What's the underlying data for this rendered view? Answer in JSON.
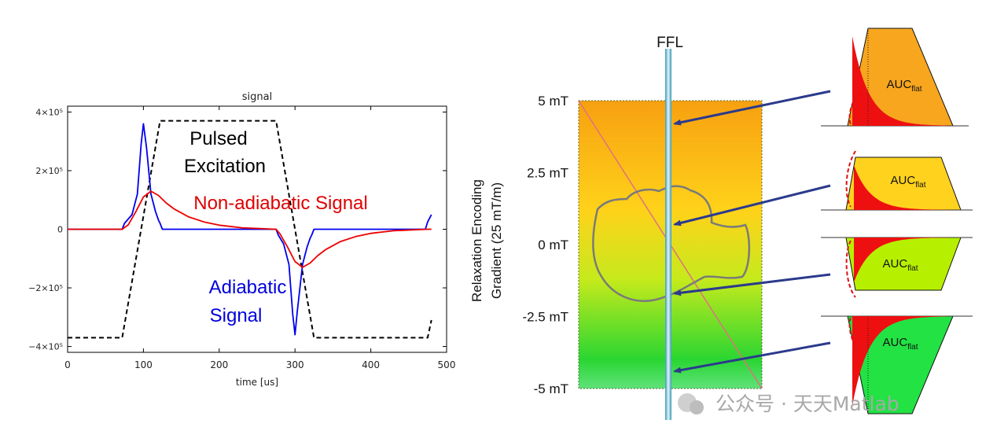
{
  "watermark": "公众号 · 天天Matlab",
  "chart_data": [
    {
      "type": "line",
      "title": "signal",
      "xlabel": "time [us]",
      "ylabel": "",
      "xlim": [
        0,
        500
      ],
      "ylim": [
        -420000,
        420000
      ],
      "x_ticks": [
        "0",
        "100",
        "200",
        "300",
        "400",
        "500"
      ],
      "y_ticks": [
        {
          "value": 400000,
          "label": "4×10⁵"
        },
        {
          "value": 200000,
          "label": "2×10⁵"
        },
        {
          "value": 0,
          "label": "0"
        },
        {
          "value": -200000,
          "label": "−2×10⁵"
        },
        {
          "value": -400000,
          "label": "−4×10⁵"
        }
      ],
      "grid": false,
      "annotations": [
        {
          "text": "Pulsed",
          "series": "pulsed"
        },
        {
          "text": "Excitation",
          "series": "pulsed"
        },
        {
          "text": "Non-adiabatic Signal",
          "series": "nonadiabatic"
        },
        {
          "text": "Adiabatic",
          "series": "adiabatic"
        },
        {
          "text": "Signal",
          "series": "adiabatic"
        }
      ],
      "series": [
        {
          "id": "pulsed",
          "color": "#000000",
          "dashed": true,
          "x": [
            0,
            72,
            122,
            275,
            325,
            475,
            480
          ],
          "y": [
            -370000,
            -370000,
            370000,
            370000,
            -370000,
            -370000,
            -310000
          ]
        },
        {
          "id": "adiabatic",
          "color": "#0000ee",
          "x": [
            0,
            72,
            75,
            85,
            92,
            97,
            100,
            104,
            110,
            116,
            120,
            122,
            125,
            200,
            270,
            275,
            278,
            285,
            292,
            297,
            300,
            303,
            310,
            316,
            320,
            322,
            325,
            400,
            472,
            475,
            480
          ],
          "y": [
            0,
            0,
            20000,
            50000,
            120000,
            290000,
            360000,
            280000,
            120000,
            60000,
            30000,
            20000,
            0,
            0,
            0,
            0,
            -20000,
            -50000,
            -120000,
            -290000,
            -360000,
            -280000,
            -120000,
            -60000,
            -30000,
            -20000,
            0,
            0,
            0,
            25000,
            50000
          ]
        },
        {
          "id": "nonadiabatic",
          "color": "#ee0000",
          "x": [
            0,
            72,
            80,
            90,
            100,
            110,
            120,
            130,
            140,
            160,
            180,
            200,
            230,
            260,
            275,
            280,
            290,
            300,
            310,
            320,
            330,
            340,
            360,
            380,
            400,
            430,
            460,
            475,
            480
          ],
          "y": [
            0,
            0,
            15000,
            60000,
            110000,
            130000,
            115000,
            90000,
            70000,
            42000,
            25000,
            14000,
            5000,
            1500,
            0,
            -15000,
            -60000,
            -110000,
            -130000,
            -115000,
            -90000,
            -70000,
            -42000,
            -25000,
            -14000,
            -5000,
            -1500,
            0,
            0
          ]
        }
      ]
    },
    {
      "type": "diagram",
      "title": "FFL",
      "ylabel_lines": [
        "Relaxation Encoding",
        "Gradient (25 mT/m)"
      ],
      "y_ticks": [
        {
          "value": 5,
          "label": "5 mT"
        },
        {
          "value": 2.5,
          "label": "2.5 mT"
        },
        {
          "value": 0,
          "label": "0 mT"
        },
        {
          "value": -2.5,
          "label": "-2.5 mT"
        },
        {
          "value": -5,
          "label": "-5 mT"
        }
      ],
      "ylim": [
        -5,
        5
      ],
      "insets": [
        {
          "label": "AUC",
          "sub": "flat",
          "fill": "#f7a61e",
          "gradient_mT": 4.2
        },
        {
          "label": "AUC",
          "sub": "flat",
          "fill": "#ffd21e",
          "gradient_mT": 0.7
        },
        {
          "label": "AUC",
          "sub": "flat",
          "fill": "#b6f000",
          "gradient_mT": -1.7
        },
        {
          "label": "AUC",
          "sub": "flat",
          "fill": "#22e244",
          "gradient_mT": -4.4
        }
      ]
    }
  ]
}
